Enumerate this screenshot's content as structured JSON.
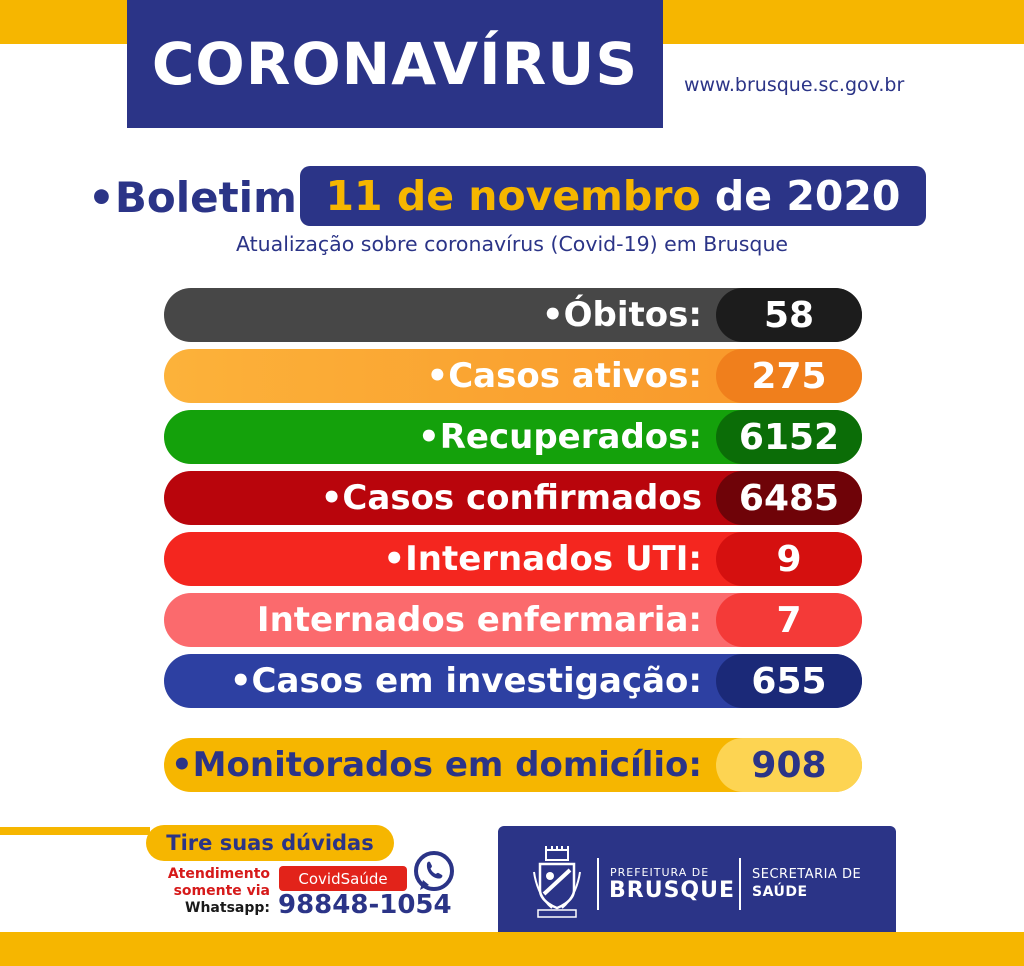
{
  "header": {
    "title": "CORONAVÍRUS",
    "url": "www.brusque.sc.gov.br"
  },
  "bulletin": {
    "label": "•Boletim",
    "date_day_month": "11 de novembro",
    "date_year": "de 2020",
    "subtitle": "Atualização sobre coronavírus (Covid-19) em Brusque"
  },
  "stats": [
    {
      "label": "•Óbitos:",
      "value": "58"
    },
    {
      "label": "•Casos ativos:",
      "value": "275"
    },
    {
      "label": "•Recuperados:",
      "value": "6152"
    },
    {
      "label": "•Casos confirmados",
      "value": "6485"
    },
    {
      "label": "•Internados UTI:",
      "value": "9"
    },
    {
      "label": "Internados enfermaria:",
      "value": "7"
    },
    {
      "label": "•Casos em investigação:",
      "value": "655"
    }
  ],
  "monitored": {
    "label": "•Monitorados em domicílio:",
    "value": "908"
  },
  "contact": {
    "title": "Tire suas dúvidas",
    "line1": "Atendimento",
    "line2": "somente via",
    "line3": "Whatsapp:",
    "badge": "CovidSaúde",
    "phone": "98848-1054",
    "icon": "whatsapp-icon"
  },
  "branding": {
    "prefeitura_label": "PREFEITURA DE",
    "city": "BRUSQUE",
    "secretaria_label": "SECRETARIA DE",
    "secretaria_name": "SAÚDE",
    "icon": "brasao-icon"
  },
  "colors": {
    "navy": "#2b3487",
    "gold": "#f6b600",
    "obitos": "#474747",
    "ativos": "#f89428",
    "recuperados": "#14a10b",
    "confirmados": "#b9050c",
    "uti": "#f4261f",
    "enfermaria": "#fb6a6d",
    "investigacao": "#2d40a2"
  }
}
